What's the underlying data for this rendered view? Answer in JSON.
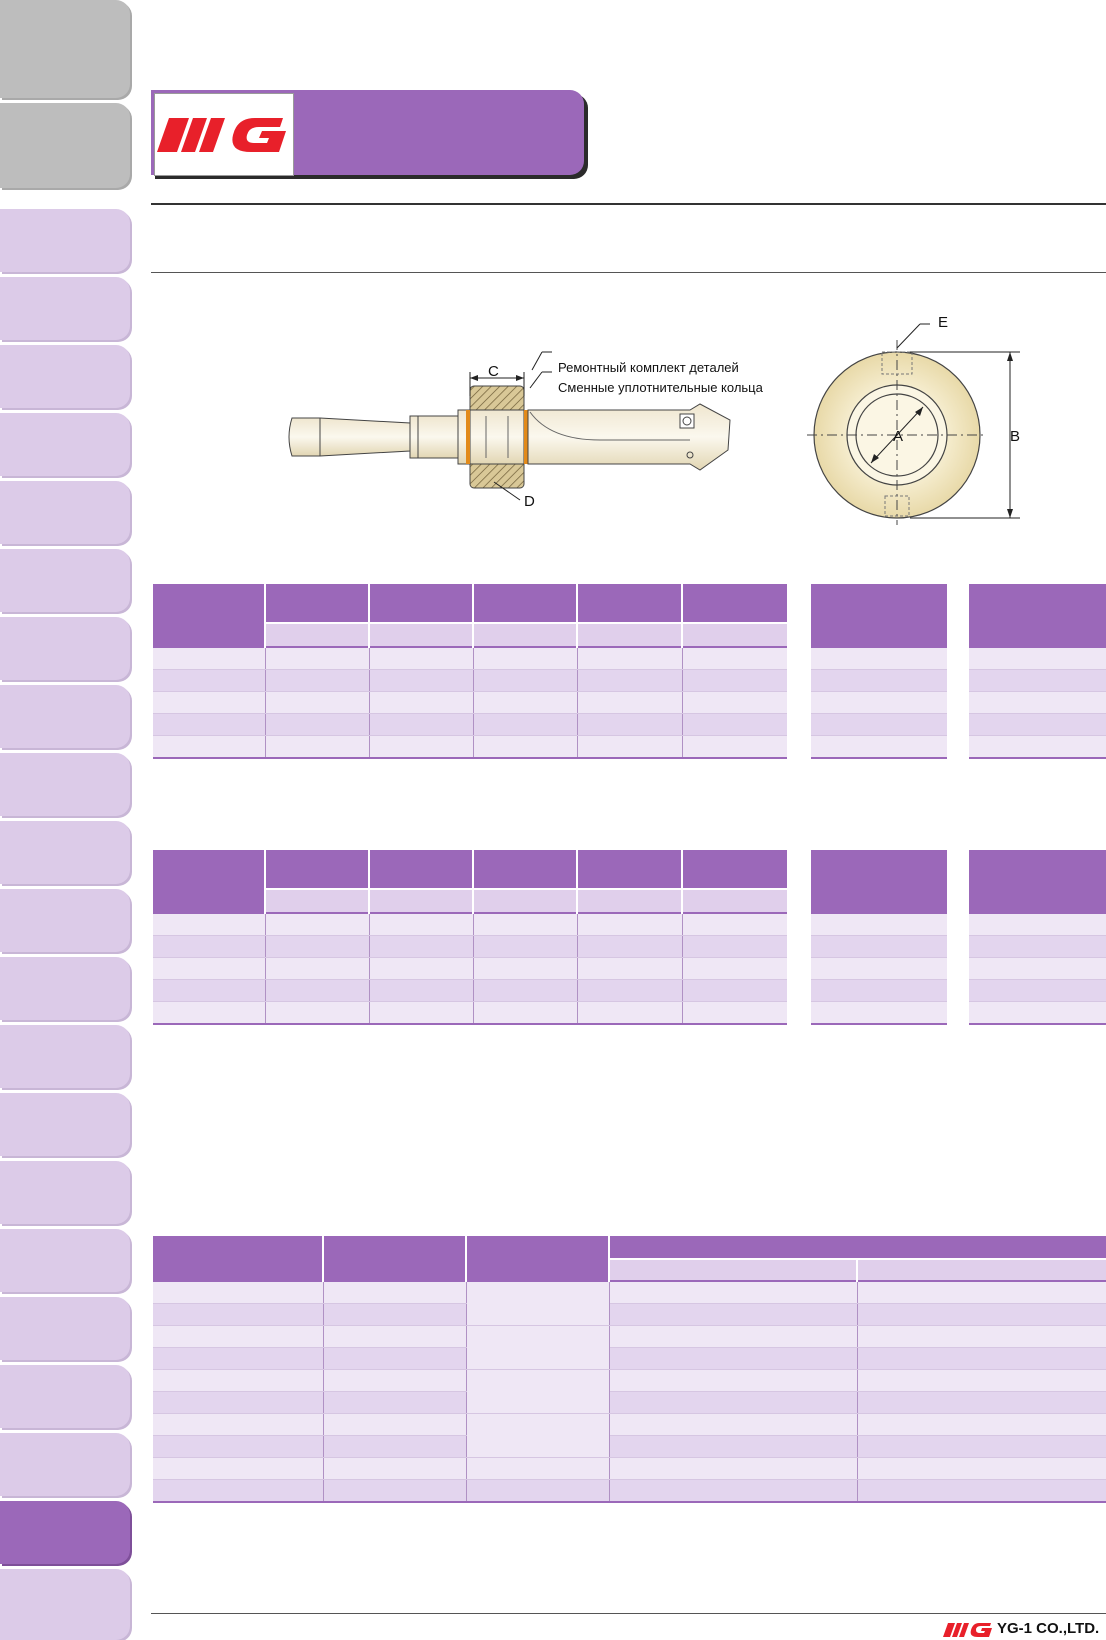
{
  "brand": {
    "logo_text": "YG",
    "primary_color": "#9b68b9",
    "logo_color": "#e8202a"
  },
  "diagram": {
    "callouts": {
      "repair_kit": "Ремонтный комплект деталей",
      "seal_rings": "Сменные уплотнительные кольца"
    },
    "dimensions": {
      "C": "C",
      "D": "D",
      "E": "E",
      "B": "B",
      "A": "A"
    }
  },
  "footer": {
    "company": "YG-1 CO.,LTD."
  }
}
